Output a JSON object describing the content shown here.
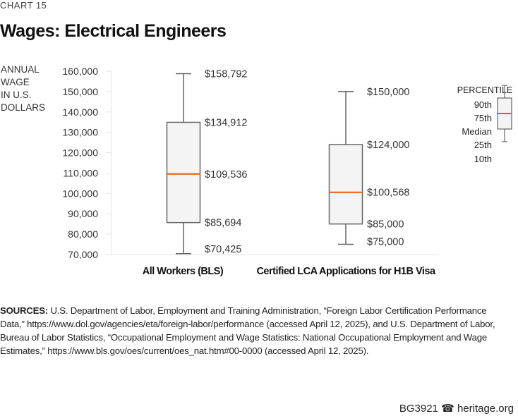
{
  "kicker": "CHART 15",
  "title": "Wages: Electrical Engineers",
  "chart_data": {
    "type": "boxplot",
    "ylabel": "ANNUAL WAGE IN U.S. DOLLARS",
    "ylabel_lines": [
      "ANNUAL",
      "WAGE",
      "IN U.S.",
      "DOLLARS"
    ],
    "ylim": [
      70000,
      160000
    ],
    "yticks": [
      70000,
      80000,
      90000,
      100000,
      110000,
      120000,
      130000,
      140000,
      150000,
      160000
    ],
    "ytick_labels": [
      "70,000",
      "80,000",
      "90,000",
      "100,000",
      "110,000",
      "120,000",
      "130,000",
      "140,000",
      "150,000",
      "160,000"
    ],
    "grid": false,
    "categories": [
      "All Workers (BLS)",
      "Certified LCA Applications for H1B Visa"
    ],
    "series": [
      {
        "p10": 70425,
        "p25": 85694,
        "median": 109536,
        "p75": 134912,
        "p90": 158792,
        "labels": [
          "$70,425",
          "$85,694",
          "$109,536",
          "$134,912",
          "$158,792"
        ]
      },
      {
        "p10": 75000,
        "p25": 85000,
        "median": 100568,
        "p75": 124000,
        "p90": 150000,
        "labels": [
          "$75,000",
          "$85,000",
          "$100,568",
          "$124,000",
          "$150,000"
        ]
      }
    ],
    "legend": {
      "title": "PERCENTILE",
      "items": [
        "90th",
        "75th",
        "Median",
        "25th",
        "10th"
      ],
      "placement": "top-right"
    },
    "colors": {
      "box_fill": "#f4f4f4",
      "box_stroke": "#666666",
      "median": "#e8590c",
      "axis": "#e6e6e6"
    }
  },
  "sources": {
    "label": "SOURCES:",
    "text": " U.S. Department of Labor, Employment and Training Administration, “Foreign Labor Certification Performance Data,” https://www.dol.gov/agencies/eta/foreign-labor/performance (accessed April 12, 2025), and U.S. Department of Labor, Bureau of Labor Statistics, “Occupational Employment and Wage Statistics: National Occupational Employment and Wage Estimates,” https://www.bls.gov/oes/current/oes_nat.htm#00-0000 (accessed April 12, 2025)."
  },
  "footer": {
    "code": "BG3921",
    "icon": "liberty-bell-icon",
    "site": "heritage.org"
  }
}
